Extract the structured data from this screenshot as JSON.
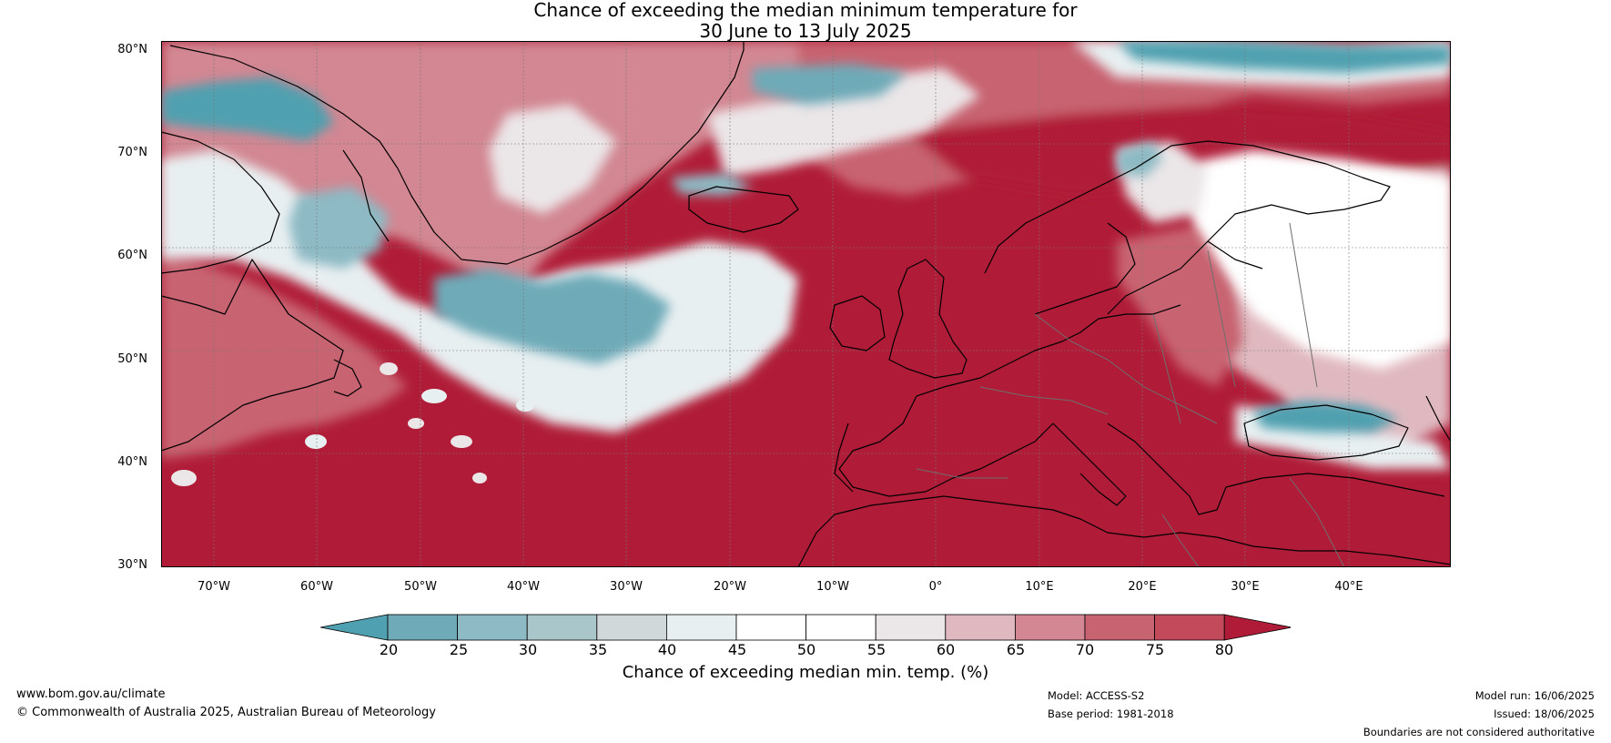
{
  "title": {
    "line1": "Chance of exceeding the median minimum temperature for",
    "line2": "30 June to 13 July 2025"
  },
  "map": {
    "lat_labels": [
      "80°N",
      "70°N",
      "60°N",
      "50°N",
      "40°N",
      "30°N"
    ],
    "lon_labels": [
      "70°W",
      "60°W",
      "50°W",
      "40°W",
      "30°W",
      "20°W",
      "10°W",
      "0°",
      "10°E",
      "20°E",
      "30°E",
      "40°E"
    ]
  },
  "colorbar": {
    "ticks": [
      "20",
      "25",
      "30",
      "35",
      "40",
      "45",
      "50",
      "55",
      "60",
      "65",
      "70",
      "75",
      "80"
    ],
    "colors": [
      "#4fa0b0",
      "#6eaab8",
      "#8dbac4",
      "#a9c6cb",
      "#d0d8da",
      "#e8eff1",
      "#ffffff",
      "#ffffff",
      "#ebe6e8",
      "#e0b9c0",
      "#d28792",
      "#c86471",
      "#c24a5b",
      "#b01c37"
    ],
    "label": "Chance of exceeding median min. temp. (%)"
  },
  "footer": {
    "website": "www.bom.gov.au/climate",
    "copyright": "© Commonwealth of Australia 2025, Australian Bureau of Meteorology",
    "model": "Model: ACCESS-S2",
    "base_period": "Base period: 1981-2018",
    "model_run": "Model run: 16/06/2025",
    "issued": "Issued: 18/06/2025",
    "disclaimer": "Boundaries are not considered authoritative"
  }
}
